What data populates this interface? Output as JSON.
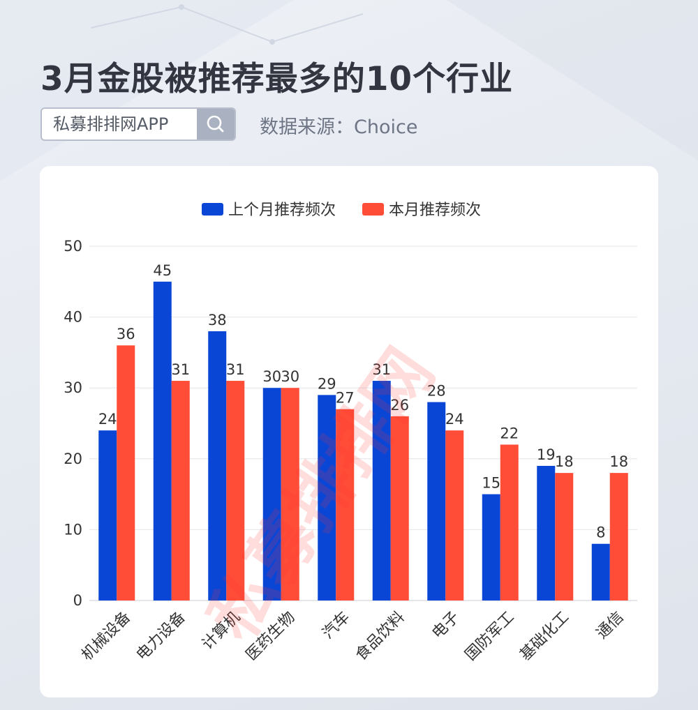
{
  "header": {
    "title": "3月金股被推荐最多的10个行业",
    "search_text": "私募排排网APP",
    "source": "数据来源：Choice"
  },
  "watermark": "私募排排网",
  "chart_data": {
    "type": "bar",
    "title": "",
    "xlabel": "",
    "ylabel": "",
    "ylim": [
      0,
      50
    ],
    "yticks": [
      0,
      10,
      20,
      30,
      40,
      50
    ],
    "grid": true,
    "legend_position": "top-center",
    "categories": [
      "机械设备",
      "电力设备",
      "计算机",
      "医药生物",
      "汽车",
      "食品饮料",
      "电子",
      "国防军工",
      "基础化工",
      "通信"
    ],
    "series": [
      {
        "name": "上个月推荐频次",
        "color": "#0a46d6",
        "values": [
          24,
          45,
          38,
          30,
          29,
          31,
          28,
          15,
          19,
          8
        ]
      },
      {
        "name": "本月推荐频次",
        "color": "#ff4d38",
        "values": [
          36,
          31,
          31,
          30,
          27,
          26,
          24,
          22,
          18,
          18
        ]
      }
    ]
  }
}
